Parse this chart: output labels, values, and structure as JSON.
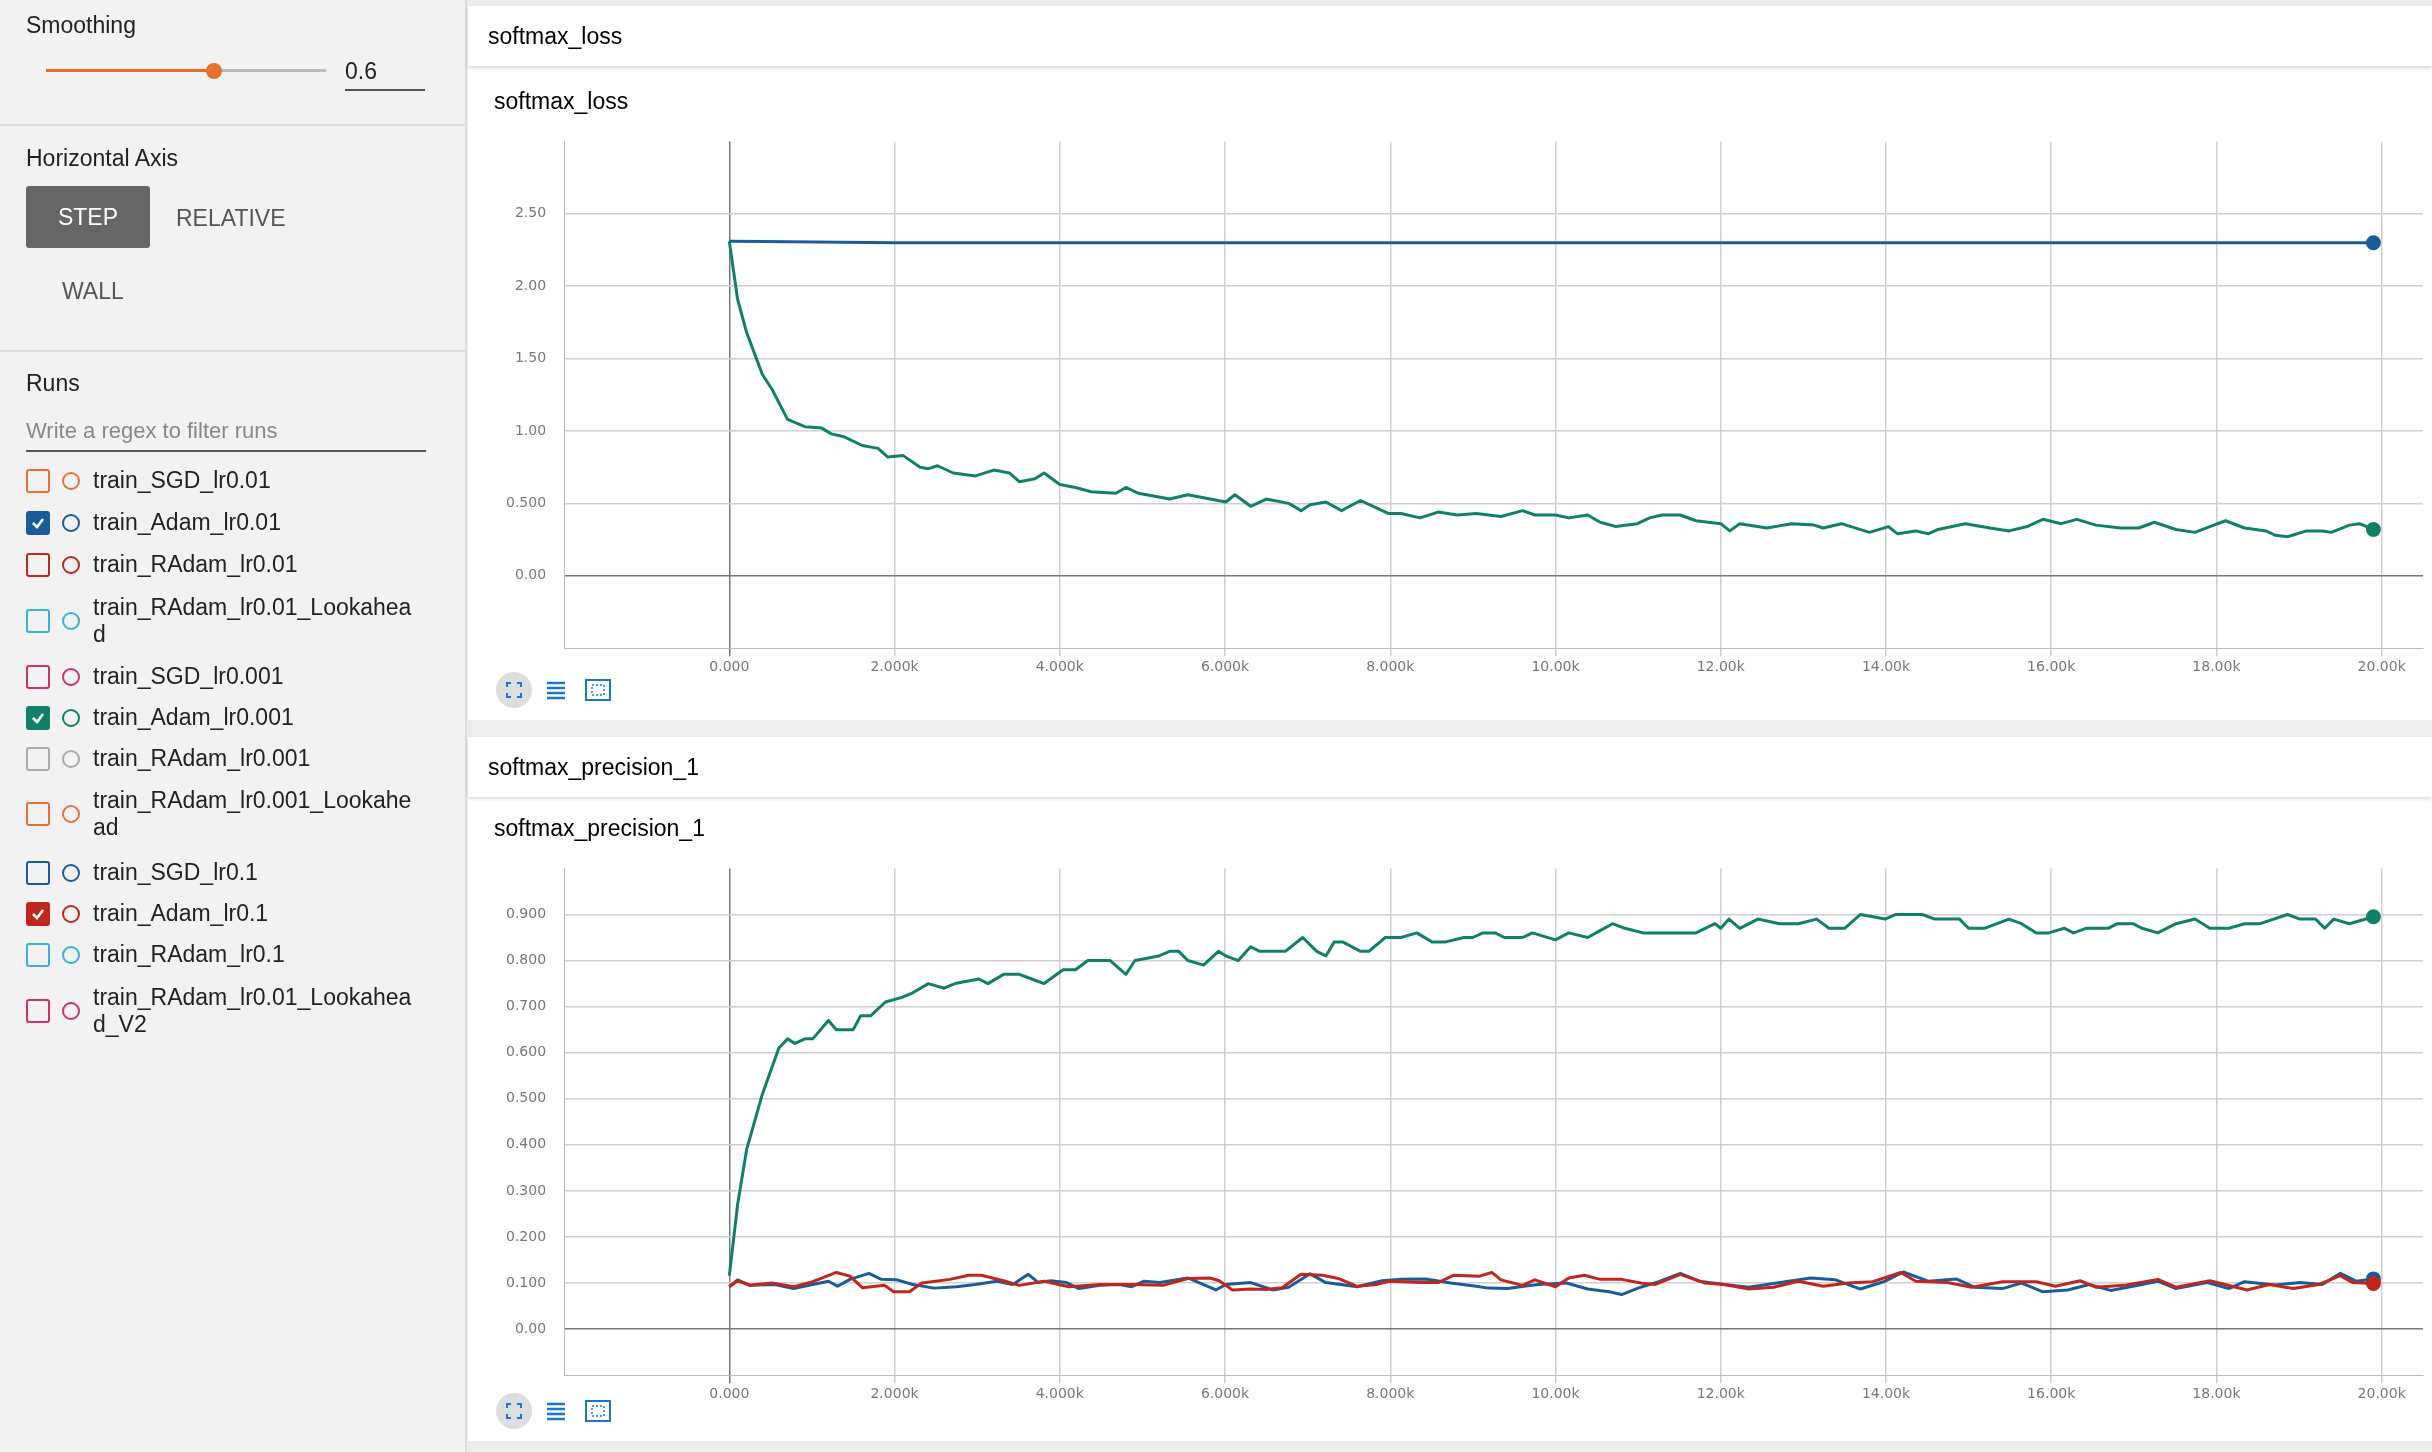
{
  "chart_data": [
    {
      "type": "other",
      "annotations": [
        "Smoothing",
        "0.6",
        "Horizontal Axis",
        "STEP",
        "RELATIVE",
        "WALL",
        "Runs",
        "Write a regex to filter runs",
        "train_SGD_lr0.01",
        "train_Adam_lr0.01",
        "train_RAdam_lr0.01",
        "train_RAdam_lr0.01_Lookahead",
        "train_SGD_lr0.001",
        "train_Adam_lr0.001",
        "train_RAdam_lr0.001",
        "train_RAdam_lr0.001_Lookahead",
        "train_SGD_lr0.1",
        "train_Adam_lr0.1",
        "train_RAdam_lr0.1",
        "train_RAdam_lr0.01_Lookahead_V2"
      ]
    },
    {
      "type": "line",
      "title": "softmax_loss",
      "annotations": [
        "softmax_loss"
      ],
      "grid": true,
      "legend": false,
      "xlim": [
        -2000,
        20500
      ],
      "xticks": [
        {
          "value": 0,
          "label": "0.000"
        },
        {
          "value": 2000,
          "label": "2.000k"
        },
        {
          "value": 4000,
          "label": "4.000k"
        },
        {
          "value": 6000,
          "label": "6.000k"
        },
        {
          "value": 8000,
          "label": "8.000k"
        },
        {
          "value": 10000,
          "label": "10.00k"
        },
        {
          "value": 12000,
          "label": "12.00k"
        },
        {
          "value": 14000,
          "label": "14.00k"
        },
        {
          "value": 16000,
          "label": "16.00k"
        },
        {
          "value": 18000,
          "label": "18.00k"
        },
        {
          "value": 20000,
          "label": "20.00k"
        }
      ],
      "ylim": [
        -0.5,
        3.0
      ],
      "yticks": [
        {
          "value": 0,
          "label": "0.00"
        },
        {
          "value": 0.5,
          "label": "0.500"
        },
        {
          "value": 1,
          "label": "1.00"
        },
        {
          "value": 1.5,
          "label": "1.50"
        },
        {
          "value": 2,
          "label": "2.00"
        },
        {
          "value": 2.5,
          "label": "2.50"
        }
      ],
      "series": [
        {
          "color": "#1a5c9a",
          "x": [
            0,
            2000,
            6000,
            10000,
            14000,
            19900
          ],
          "values": [
            2.31,
            2.3,
            2.3,
            2.3,
            2.3,
            2.3
          ]
        },
        {
          "color": "#128068",
          "x": [
            0,
            100,
            210,
            400,
            515,
            705,
            915,
            1120,
            1235,
            1390,
            1610,
            1800,
            1920,
            2105,
            2310,
            2410,
            2520,
            2710,
            2980,
            3200,
            3390,
            3510,
            3700,
            3810,
            4000,
            4190,
            4380,
            4680,
            4800,
            4950,
            5330,
            5550,
            5820,
            6010,
            6120,
            6310,
            6500,
            6770,
            6920,
            7030,
            7220,
            7410,
            7640,
            7980,
            8130,
            8360,
            8580,
            8810,
            9040,
            9340,
            9600,
            9750,
            10000,
            10160,
            10390,
            10540,
            10730,
            10990,
            11140,
            11290,
            11510,
            11700,
            12000,
            12110,
            12230,
            12560,
            12860,
            13130,
            13240,
            13460,
            13800,
            14030,
            14140,
            14360,
            14510,
            14630,
            14960,
            15260,
            15490,
            15710,
            15900,
            16120,
            16310,
            16540,
            16840,
            17060,
            17250,
            17510,
            17740,
            17920,
            18110,
            18340,
            18600,
            18710,
            18860,
            19090,
            19280,
            19390,
            19610,
            19730,
            19900
          ],
          "values": [
            2.31,
            1.91,
            1.68,
            1.39,
            1.29,
            1.08,
            1.03,
            1.02,
            0.98,
            0.96,
            0.9,
            0.88,
            0.82,
            0.83,
            0.75,
            0.74,
            0.76,
            0.71,
            0.69,
            0.73,
            0.71,
            0.65,
            0.67,
            0.71,
            0.63,
            0.61,
            0.58,
            0.57,
            0.61,
            0.57,
            0.53,
            0.56,
            0.53,
            0.51,
            0.56,
            0.48,
            0.53,
            0.5,
            0.45,
            0.49,
            0.51,
            0.45,
            0.52,
            0.43,
            0.43,
            0.4,
            0.44,
            0.42,
            0.43,
            0.41,
            0.45,
            0.42,
            0.42,
            0.4,
            0.42,
            0.37,
            0.34,
            0.36,
            0.4,
            0.42,
            0.42,
            0.38,
            0.36,
            0.31,
            0.36,
            0.33,
            0.36,
            0.35,
            0.33,
            0.36,
            0.3,
            0.34,
            0.29,
            0.31,
            0.29,
            0.32,
            0.36,
            0.33,
            0.31,
            0.34,
            0.39,
            0.36,
            0.39,
            0.35,
            0.33,
            0.33,
            0.37,
            0.32,
            0.3,
            0.34,
            0.38,
            0.33,
            0.31,
            0.28,
            0.27,
            0.31,
            0.31,
            0.3,
            0.35,
            0.36,
            0.32
          ]
        }
      ]
    },
    {
      "type": "line",
      "title": "softmax_precision_1",
      "annotations": [
        "softmax_precision_1"
      ],
      "grid": true,
      "legend": false,
      "xlim": [
        -2000,
        20500
      ],
      "xticks": [
        {
          "value": 0,
          "label": "0.000"
        },
        {
          "value": 2000,
          "label": "2.000k"
        },
        {
          "value": 4000,
          "label": "4.000k"
        },
        {
          "value": 6000,
          "label": "6.000k"
        },
        {
          "value": 8000,
          "label": "8.000k"
        },
        {
          "value": 10000,
          "label": "10.00k"
        },
        {
          "value": 12000,
          "label": "12.00k"
        },
        {
          "value": 14000,
          "label": "14.00k"
        },
        {
          "value": 16000,
          "label": "16.00k"
        },
        {
          "value": 18000,
          "label": "18.00k"
        },
        {
          "value": 20000,
          "label": "20.00k"
        }
      ],
      "ylim": [
        -0.1,
        1.0
      ],
      "yticks": [
        {
          "value": 0,
          "label": "0.00"
        },
        {
          "value": 0.1,
          "label": "0.100"
        },
        {
          "value": 0.2,
          "label": "0.200"
        },
        {
          "value": 0.3,
          "label": "0.300"
        },
        {
          "value": 0.4,
          "label": "0.400"
        },
        {
          "value": 0.5,
          "label": "0.500"
        },
        {
          "value": 0.6,
          "label": "0.600"
        },
        {
          "value": 0.7,
          "label": "0.700"
        },
        {
          "value": 0.8,
          "label": "0.800"
        },
        {
          "value": 0.9,
          "label": "0.900"
        }
      ],
      "series": [
        {
          "color": "#128068",
          "x": [
            0,
            100,
            210,
            400,
            600,
            705,
            795,
            915,
            1010,
            1200,
            1295,
            1500,
            1590,
            1710,
            1890,
            2090,
            2220,
            2410,
            2600,
            2730,
            3020,
            3130,
            3320,
            3510,
            3660,
            3810,
            4040,
            4190,
            4340,
            4610,
            4800,
            4910,
            5200,
            5330,
            5440,
            5550,
            5740,
            5920,
            6010,
            6160,
            6310,
            6420,
            6730,
            6940,
            7110,
            7220,
            7320,
            7430,
            7640,
            7740,
            7940,
            8040,
            8130,
            8320,
            8510,
            8660,
            8890,
            9000,
            9120,
            9270,
            9380,
            9600,
            9720,
            10000,
            10160,
            10390,
            10540,
            10690,
            10840,
            11060,
            11290,
            11510,
            11700,
            11930,
            12000,
            12100,
            12230,
            12450,
            12710,
            12940,
            13160,
            13310,
            13500,
            13690,
            13990,
            14120,
            14440,
            14590,
            14890,
            15000,
            15190,
            15490,
            15640,
            15820,
            15970,
            16160,
            16270,
            16420,
            16690,
            16800,
            16990,
            17100,
            17290,
            17510,
            17740,
            17920,
            18150,
            18340,
            18530,
            18860,
            19010,
            19200,
            19310,
            19420,
            19610,
            19900
          ],
          "values": [
            0.116,
            0.27,
            0.39,
            0.51,
            0.61,
            0.63,
            0.62,
            0.63,
            0.63,
            0.67,
            0.65,
            0.65,
            0.68,
            0.68,
            0.71,
            0.72,
            0.73,
            0.75,
            0.74,
            0.75,
            0.76,
            0.75,
            0.77,
            0.77,
            0.76,
            0.75,
            0.78,
            0.78,
            0.8,
            0.8,
            0.77,
            0.8,
            0.81,
            0.82,
            0.82,
            0.8,
            0.79,
            0.82,
            0.81,
            0.8,
            0.83,
            0.82,
            0.82,
            0.85,
            0.82,
            0.81,
            0.84,
            0.84,
            0.82,
            0.82,
            0.85,
            0.85,
            0.85,
            0.86,
            0.84,
            0.84,
            0.85,
            0.85,
            0.86,
            0.86,
            0.85,
            0.85,
            0.86,
            0.845,
            0.86,
            0.85,
            0.865,
            0.88,
            0.87,
            0.86,
            0.86,
            0.86,
            0.86,
            0.88,
            0.87,
            0.89,
            0.87,
            0.89,
            0.88,
            0.88,
            0.89,
            0.87,
            0.87,
            0.9,
            0.89,
            0.9,
            0.9,
            0.89,
            0.89,
            0.87,
            0.87,
            0.89,
            0.88,
            0.86,
            0.86,
            0.87,
            0.86,
            0.87,
            0.87,
            0.88,
            0.88,
            0.87,
            0.86,
            0.88,
            0.89,
            0.87,
            0.87,
            0.88,
            0.88,
            0.9,
            0.89,
            0.89,
            0.87,
            0.89,
            0.88,
            0.895
          ]
        },
        {
          "color": "#c0261d",
          "x": [
            0,
            100,
            250,
            515,
            780,
            1010,
            1295,
            1460,
            1610,
            1880,
            1990,
            2180,
            2330,
            2670,
            2900,
            3050,
            3320,
            3510,
            3810,
            4110,
            4490,
            4870,
            5250,
            5550,
            5820,
            5930,
            6090,
            6310,
            6500,
            6690,
            6920,
            7180,
            7370,
            7600,
            7830,
            7980,
            8360,
            8580,
            8770,
            9080,
            9230,
            9340,
            9600,
            9750,
            10000,
            10160,
            10350,
            10540,
            10800,
            11030,
            11210,
            11510,
            11810,
            12040,
            12340,
            12640,
            12940,
            13240,
            13540,
            13840,
            14180,
            14360,
            14740,
            15040,
            15410,
            15820,
            16050,
            16350,
            16540,
            16910,
            17290,
            17510,
            17920,
            18370,
            18640,
            18930,
            19240,
            19500,
            19650,
            19900
          ],
          "values": [
            0.092,
            0.105,
            0.095,
            0.1,
            0.092,
            0.103,
            0.123,
            0.115,
            0.09,
            0.095,
            0.081,
            0.081,
            0.1,
            0.108,
            0.117,
            0.117,
            0.105,
            0.095,
            0.104,
            0.092,
            0.097,
            0.097,
            0.095,
            0.11,
            0.111,
            0.105,
            0.085,
            0.087,
            0.086,
            0.09,
            0.119,
            0.117,
            0.11,
            0.093,
            0.097,
            0.104,
            0.101,
            0.101,
            0.117,
            0.115,
            0.123,
            0.107,
            0.095,
            0.107,
            0.092,
            0.111,
            0.117,
            0.108,
            0.108,
            0.1,
            0.097,
            0.119,
            0.1,
            0.097,
            0.087,
            0.091,
            0.104,
            0.093,
            0.1,
            0.103,
            0.123,
            0.104,
            0.101,
            0.091,
            0.103,
            0.103,
            0.093,
            0.105,
            0.091,
            0.096,
            0.108,
            0.091,
            0.105,
            0.085,
            0.097,
            0.088,
            0.097,
            0.116,
            0.101,
            0.099
          ]
        },
        {
          "color": "#1a5c9a",
          "x": [
            0,
            100,
            250,
            550,
            780,
            1010,
            1200,
            1310,
            1460,
            1690,
            1840,
            2030,
            2220,
            2480,
            2750,
            2980,
            3240,
            3430,
            3620,
            3740,
            3890,
            4080,
            4230,
            4490,
            4720,
            4870,
            5020,
            5210,
            5550,
            5890,
            6010,
            6310,
            6580,
            6770,
            7030,
            7220,
            7600,
            7900,
            8130,
            8430,
            8730,
            9040,
            9190,
            9420,
            9790,
            10130,
            10390,
            10650,
            10800,
            11030,
            11250,
            11510,
            11740,
            12040,
            12340,
            12640,
            13090,
            13390,
            13690,
            13990,
            14210,
            14510,
            14850,
            15070,
            15410,
            15640,
            15900,
            16200,
            16460,
            16720,
            16990,
            17290,
            17510,
            17890,
            18150,
            18340,
            18710,
            19010,
            19280,
            19500,
            19690,
            19900
          ],
          "values": [
            0.092,
            0.107,
            0.095,
            0.097,
            0.088,
            0.097,
            0.104,
            0.093,
            0.108,
            0.121,
            0.108,
            0.107,
            0.097,
            0.089,
            0.092,
            0.097,
            0.104,
            0.097,
            0.119,
            0.101,
            0.105,
            0.101,
            0.088,
            0.095,
            0.097,
            0.092,
            0.104,
            0.101,
            0.111,
            0.085,
            0.097,
            0.101,
            0.085,
            0.091,
            0.12,
            0.101,
            0.092,
            0.105,
            0.108,
            0.109,
            0.1,
            0.093,
            0.089,
            0.088,
            0.097,
            0.1,
            0.087,
            0.081,
            0.075,
            0.091,
            0.103,
            0.121,
            0.104,
            0.097,
            0.091,
            0.099,
            0.111,
            0.107,
            0.087,
            0.104,
            0.124,
            0.104,
            0.109,
            0.091,
            0.088,
            0.1,
            0.081,
            0.085,
            0.097,
            0.084,
            0.093,
            0.104,
            0.088,
            0.101,
            0.088,
            0.103,
            0.096,
            0.101,
            0.097,
            0.121,
            0.104,
            0.109
          ]
        }
      ]
    }
  ]
}
